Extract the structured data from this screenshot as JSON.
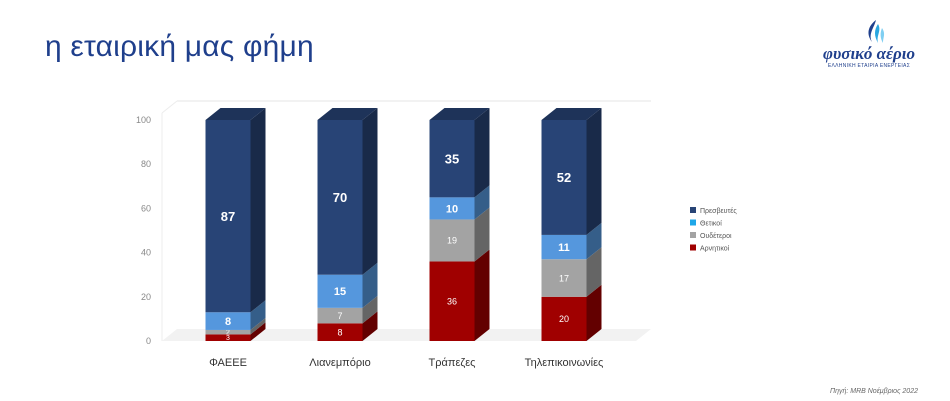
{
  "header": {
    "title": "η εταιρική μας φήμη"
  },
  "logo": {
    "text": "φυσικό αέριο",
    "subtext": "ΕΛΛΗΝΙΚΗ ΕΤΑΙΡΙΑ ΕΝΕΡΓΕΙΑΣ"
  },
  "footer": {
    "source": "Πηγή: MRB Νοέμβριος 2022"
  },
  "chart_data": {
    "type": "bar",
    "stacked": true,
    "style": "3d",
    "categories": [
      "ΦΑΕΕΕ",
      "Λιανεμπόριο",
      "Τράπεζες",
      "Τηλεπικοινωνίες"
    ],
    "ylim": [
      0,
      100
    ],
    "yticks": [
      0,
      20,
      40,
      60,
      80,
      100
    ],
    "grid": false,
    "legend_position": "right",
    "series": [
      {
        "name": "Αρνητικοί",
        "color": "#a00000",
        "label_color": "#ffffff",
        "label_bold": false,
        "values": [
          3,
          8,
          36,
          20
        ]
      },
      {
        "name": "Ουδέτεροι",
        "color": "#a3a3a3",
        "label_color": "#ffffff",
        "label_bold": false,
        "values": [
          2,
          7,
          19,
          17
        ]
      },
      {
        "name": "Θετικοί",
        "color": "#5597dd",
        "label_color": "#ffffff",
        "label_bold": true,
        "values": [
          8,
          15,
          10,
          11
        ]
      },
      {
        "name": "Πρεσβευτές",
        "color": "#284476",
        "label_color": "#ffffff",
        "label_bold": true,
        "values": [
          87,
          70,
          35,
          52
        ]
      }
    ],
    "legend": [
      {
        "name": "Πρεσβευτές",
        "color": "#284476"
      },
      {
        "name": "Θετικοί",
        "color": "#1ea7e8"
      },
      {
        "name": "Ουδέτεροι",
        "color": "#a3a3a3"
      },
      {
        "name": "Αρνητικοί",
        "color": "#a00000"
      }
    ]
  }
}
